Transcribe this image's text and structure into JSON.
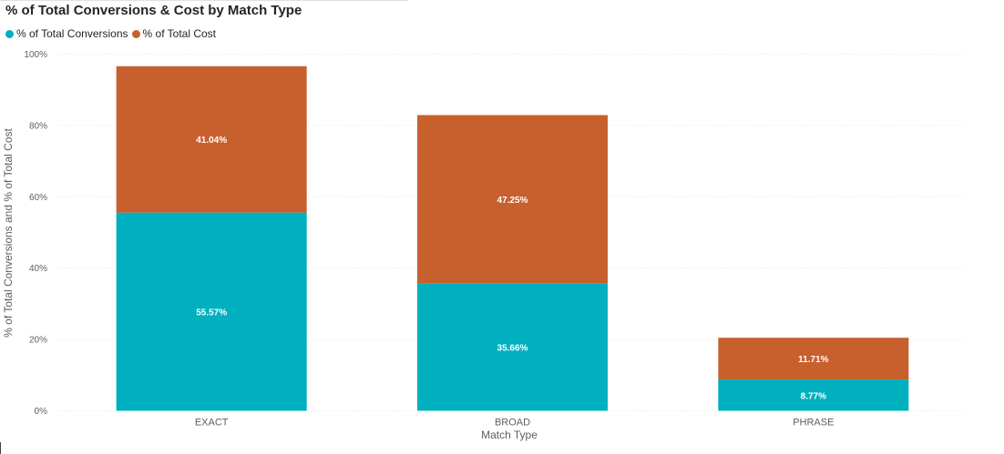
{
  "chart_data": {
    "type": "bar",
    "stacked": true,
    "title": "% of Total Conversions & Cost by Match Type",
    "xlabel": "Match Type",
    "ylabel": "% of Total Conversions and % of Total Cost",
    "categories": [
      "EXACT",
      "BROAD",
      "PHRASE"
    ],
    "series": [
      {
        "name": "% of Total Conversions",
        "color": "#01b0bf",
        "values": [
          55.57,
          35.66,
          8.77
        ],
        "labels": [
          "55.57%",
          "35.66%",
          "8.77%"
        ]
      },
      {
        "name": "% of Total Cost",
        "color": "#c8602d",
        "values": [
          41.04,
          47.25,
          11.71
        ],
        "labels": [
          "41.04%",
          "47.25%",
          "11.71%"
        ]
      }
    ],
    "ylim": [
      0,
      100
    ],
    "yticks": [
      0,
      20,
      40,
      60,
      80,
      100
    ],
    "ytick_labels": [
      "0%",
      "20%",
      "40%",
      "60%",
      "80%",
      "100%"
    ],
    "grid": true,
    "legend_position": "top-left"
  }
}
